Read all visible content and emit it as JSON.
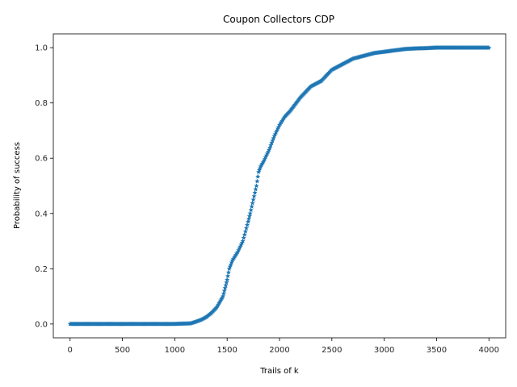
{
  "chart_data": {
    "type": "scatter",
    "title": "Coupon Collectors CDP",
    "xlabel": "Trails of k",
    "ylabel": "Probability of success",
    "xlim": [
      -160,
      4160
    ],
    "ylim": [
      -0.05,
      1.05
    ],
    "xticks": [
      0,
      500,
      1000,
      1500,
      2000,
      2500,
      3000,
      3500,
      4000
    ],
    "yticks": [
      0.0,
      0.2,
      0.4,
      0.6,
      0.8,
      1.0
    ],
    "xtick_labels": [
      "0",
      "500",
      "1000",
      "1500",
      "2000",
      "2500",
      "3000",
      "3500",
      "4000"
    ],
    "ytick_labels": [
      "0.0",
      "0.2",
      "0.4",
      "0.6",
      "0.8",
      "1.0"
    ],
    "marker": "star",
    "grid": false,
    "color": "#1f77b4",
    "series": [
      {
        "x": [
          0,
          200,
          400,
          600,
          800,
          1000,
          1150,
          1200,
          1250,
          1300,
          1350,
          1400,
          1430,
          1460,
          1480,
          1500,
          1520,
          1550,
          1600,
          1650,
          1700,
          1720,
          1750,
          1780,
          1800,
          1820,
          1850,
          1900,
          1950,
          2000,
          2050,
          2100,
          2200,
          2300,
          2400,
          2450,
          2500,
          2600,
          2700,
          2800,
          2900,
          3000,
          3100,
          3200,
          3300,
          3400,
          3500,
          3600,
          3700,
          3800,
          3900,
          4000
        ],
        "y": [
          0.0,
          0.0,
          0.0,
          0.0,
          0.0,
          0.0,
          0.002,
          0.008,
          0.015,
          0.025,
          0.04,
          0.06,
          0.08,
          0.1,
          0.13,
          0.16,
          0.2,
          0.23,
          0.26,
          0.3,
          0.37,
          0.4,
          0.45,
          0.5,
          0.55,
          0.57,
          0.59,
          0.63,
          0.68,
          0.72,
          0.75,
          0.77,
          0.82,
          0.86,
          0.88,
          0.9,
          0.92,
          0.94,
          0.96,
          0.97,
          0.98,
          0.985,
          0.99,
          0.995,
          0.997,
          0.998,
          1.0,
          1.0,
          1.0,
          1.0,
          1.0,
          1.0
        ]
      }
    ]
  }
}
